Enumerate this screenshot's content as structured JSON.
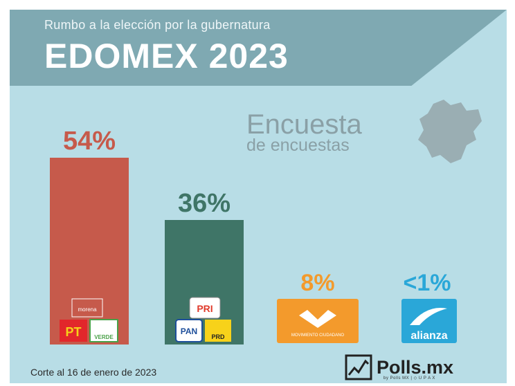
{
  "header": {
    "subtitle": "Rumbo a la elección por la gubernatura",
    "title": "EDOMEX 2023"
  },
  "badge": {
    "line1": "Encuesta",
    "line2": "de encuestas"
  },
  "footer": {
    "note": "Corte al 16 de enero de 2023",
    "brand": "Polls.mx",
    "brand_sub": "by Polls MX | ◇ U P A X"
  },
  "colors": {
    "bar_morena": "#c65a4b",
    "bar_pri_pan_prd": "#3f7567",
    "orange": "#f39a2c",
    "blue": "#2aa7d8",
    "header": "#7fa9b2",
    "background": "#b8dde6"
  },
  "chart_data": {
    "type": "bar",
    "categories": [
      "MORENA-PT-VERDE",
      "PRI-PAN-PRD",
      "MOVIMIENTO CIUDADANO",
      "alianza"
    ],
    "values": [
      54,
      36,
      8,
      1
    ],
    "value_labels": [
      "54%",
      "36%",
      "8%",
      "<1%"
    ],
    "ylim": [
      0,
      60
    ],
    "party_labels": {
      "morena": "morena",
      "pt": "PT",
      "verde": "VERDE",
      "pri": "PRI",
      "pan": "PAN",
      "prd": "PRD",
      "mc": "MOVIMIENTO CIUDADANO",
      "alianza": "alianza"
    }
  }
}
